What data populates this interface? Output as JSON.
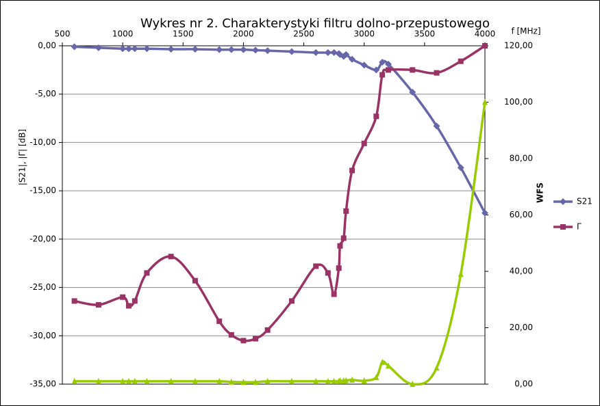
{
  "chart_data": {
    "type": "line",
    "title": "Wykres nr 2. Charakterystyki filtru dolno-przepustowego",
    "x_label": "f [MHz]",
    "y_label": "|S21|, |Γ| [dB]",
    "y2_label": "WFS",
    "x": [
      600,
      800,
      1000,
      1050,
      1100,
      1200,
      1400,
      1600,
      1800,
      1900,
      2000,
      2100,
      2200,
      2400,
      2600,
      2700,
      2750,
      2790,
      2800,
      2830,
      2850,
      2900,
      3000,
      3100,
      3150,
      3200,
      3400,
      3600,
      3800,
      4000
    ],
    "series": [
      {
        "name": "S21",
        "color": "#6666a8",
        "marker": "diamond",
        "values": [
          -0.1,
          -0.2,
          -0.3,
          -0.3,
          -0.3,
          -0.3,
          -0.35,
          -0.35,
          -0.4,
          -0.4,
          -0.4,
          -0.45,
          -0.5,
          -0.6,
          -0.7,
          -0.7,
          -0.7,
          -0.8,
          -0.9,
          -1.1,
          -0.9,
          -1.4,
          -2.0,
          -2.5,
          -1.7,
          -1.9,
          -4.8,
          -8.3,
          -12.6,
          -17.3
        ]
      },
      {
        "name": "Γ",
        "color": "#993366",
        "marker": "square",
        "values": [
          -26.4,
          -26.8,
          -26.0,
          -26.9,
          -26.4,
          -23.5,
          -21.8,
          -24.3,
          -28.5,
          -29.9,
          -30.5,
          -30.3,
          -29.4,
          -26.4,
          -22.8,
          -23.5,
          -25.7,
          -23.0,
          -20.7,
          -19.9,
          -17.1,
          -12.9,
          -10.1,
          -7.3,
          -3.0,
          -2.5,
          -2.5,
          -2.8,
          -1.6,
          0
        ]
      },
      {
        "color": "#99cc00",
        "marker": "triangle",
        "axis": "y2",
        "values": [
          1.0,
          1.0,
          1.0,
          1.0,
          1.0,
          1.0,
          1.0,
          1.0,
          1.0,
          0.8,
          0.7,
          0.7,
          1.0,
          1.0,
          1.0,
          1.0,
          1.0,
          1.0,
          1.2,
          1.2,
          1.3,
          1.5,
          1.2,
          2.4,
          7.8,
          6.5,
          0,
          5.8,
          39,
          100
        ]
      }
    ],
    "xlim": [
      500,
      4000
    ],
    "xticks": [
      500,
      1000,
      1500,
      2000,
      2500,
      3000,
      3500,
      4000
    ],
    "ylim": [
      -35,
      0
    ],
    "yticks": [
      {
        "value": 0,
        "label": "0,00"
      },
      {
        "value": -5,
        "label": "-5,00"
      },
      {
        "value": -10,
        "label": "-10,00"
      },
      {
        "value": -15,
        "label": "-15,00"
      },
      {
        "value": -20,
        "label": "-20,00"
      },
      {
        "value": -25,
        "label": "-25,00"
      },
      {
        "value": -30,
        "label": "-30,00"
      },
      {
        "value": -35,
        "label": "-35,00"
      }
    ],
    "y2lim": [
      0,
      120
    ],
    "y2ticks": [
      {
        "value": 0,
        "label": "0,00"
      },
      {
        "value": 20,
        "label": "20,00"
      },
      {
        "value": 40,
        "label": "40,00"
      },
      {
        "value": 60,
        "label": "60,00"
      },
      {
        "value": 80,
        "label": "80,00"
      },
      {
        "value": 100,
        "label": "100,00"
      },
      {
        "value": 120,
        "label": "120,00"
      }
    ],
    "grid": true,
    "legend": "right"
  }
}
